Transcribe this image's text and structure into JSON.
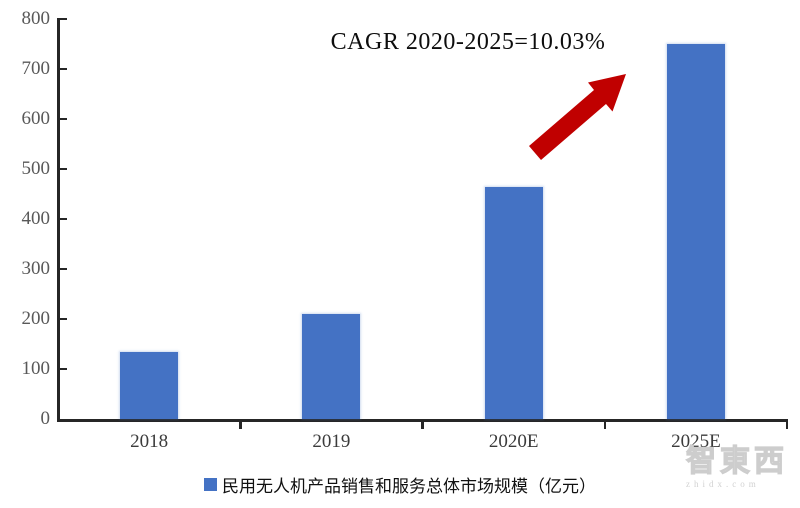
{
  "annotation": {
    "cagr_label": "CAGR 2020-2025=10.03%"
  },
  "legend": {
    "marker": "blue-square",
    "label": "民用无人机产品销售和服务总体市场规模（亿元）"
  },
  "watermark": {
    "logo": "智東西",
    "domain": "zhidx.com"
  },
  "colors": {
    "bar": "#4472C4",
    "arrow": "#C00000",
    "axis": "#262626",
    "y_tick_label": "#595959",
    "x_tick_label": "#3b3b3b"
  },
  "chart_data": {
    "type": "bar",
    "categories": [
      "2018",
      "2019",
      "2020E",
      "2025E"
    ],
    "values": [
      134,
      210,
      465,
      750
    ],
    "series_name": "民用无人机产品销售和服务总体市场规模（亿元）",
    "title": "",
    "annotation": "CAGR 2020-2025=10.03%",
    "xlabel": "",
    "ylabel": "",
    "ylim": [
      0,
      800
    ],
    "yticks": [
      0,
      100,
      200,
      300,
      400,
      500,
      600,
      700,
      800
    ],
    "grid": false,
    "legend_position": "bottom",
    "bar_color": "#4472C4"
  }
}
